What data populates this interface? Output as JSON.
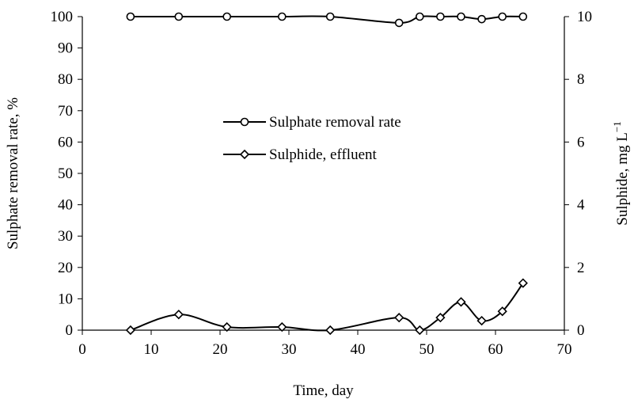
{
  "chart_data": {
    "type": "line",
    "x_axis": {
      "label": "Time, day",
      "lim": [
        0,
        70
      ],
      "ticks": [
        0,
        10,
        20,
        30,
        40,
        50,
        60,
        70
      ]
    },
    "y_axis_left": {
      "label": "Sulphate removal rate, %",
      "lim": [
        0,
        100
      ],
      "ticks": [
        0,
        10,
        20,
        30,
        40,
        50,
        60,
        70,
        80,
        90,
        100
      ]
    },
    "y_axis_right": {
      "label": "Sulphide, mg L",
      "label_superscript": "−1",
      "lim": [
        0,
        10
      ],
      "ticks": [
        0,
        2,
        4,
        6,
        8,
        10
      ]
    },
    "grid": false,
    "legend": {
      "placement": "center-left"
    },
    "series": [
      {
        "name": "Sulphate removal rate",
        "axis": "left",
        "marker": "circle",
        "color": "#000000",
        "smooth": true,
        "x": [
          7,
          14,
          21,
          29,
          36,
          46,
          49,
          52,
          55,
          58,
          61,
          64
        ],
        "y": [
          100,
          100,
          100,
          100,
          100,
          98,
          100,
          100,
          100,
          99.2,
          100,
          100
        ]
      },
      {
        "name": "Sulphide, effluent",
        "axis": "right",
        "marker": "diamond",
        "color": "#000000",
        "smooth": true,
        "x": [
          7,
          14,
          21,
          29,
          36,
          46,
          49,
          52,
          55,
          58,
          61,
          64
        ],
        "y": [
          0,
          0.5,
          0.1,
          0.1,
          0,
          0.4,
          0,
          0.4,
          0.9,
          0.3,
          0.6,
          1.5
        ]
      }
    ]
  }
}
